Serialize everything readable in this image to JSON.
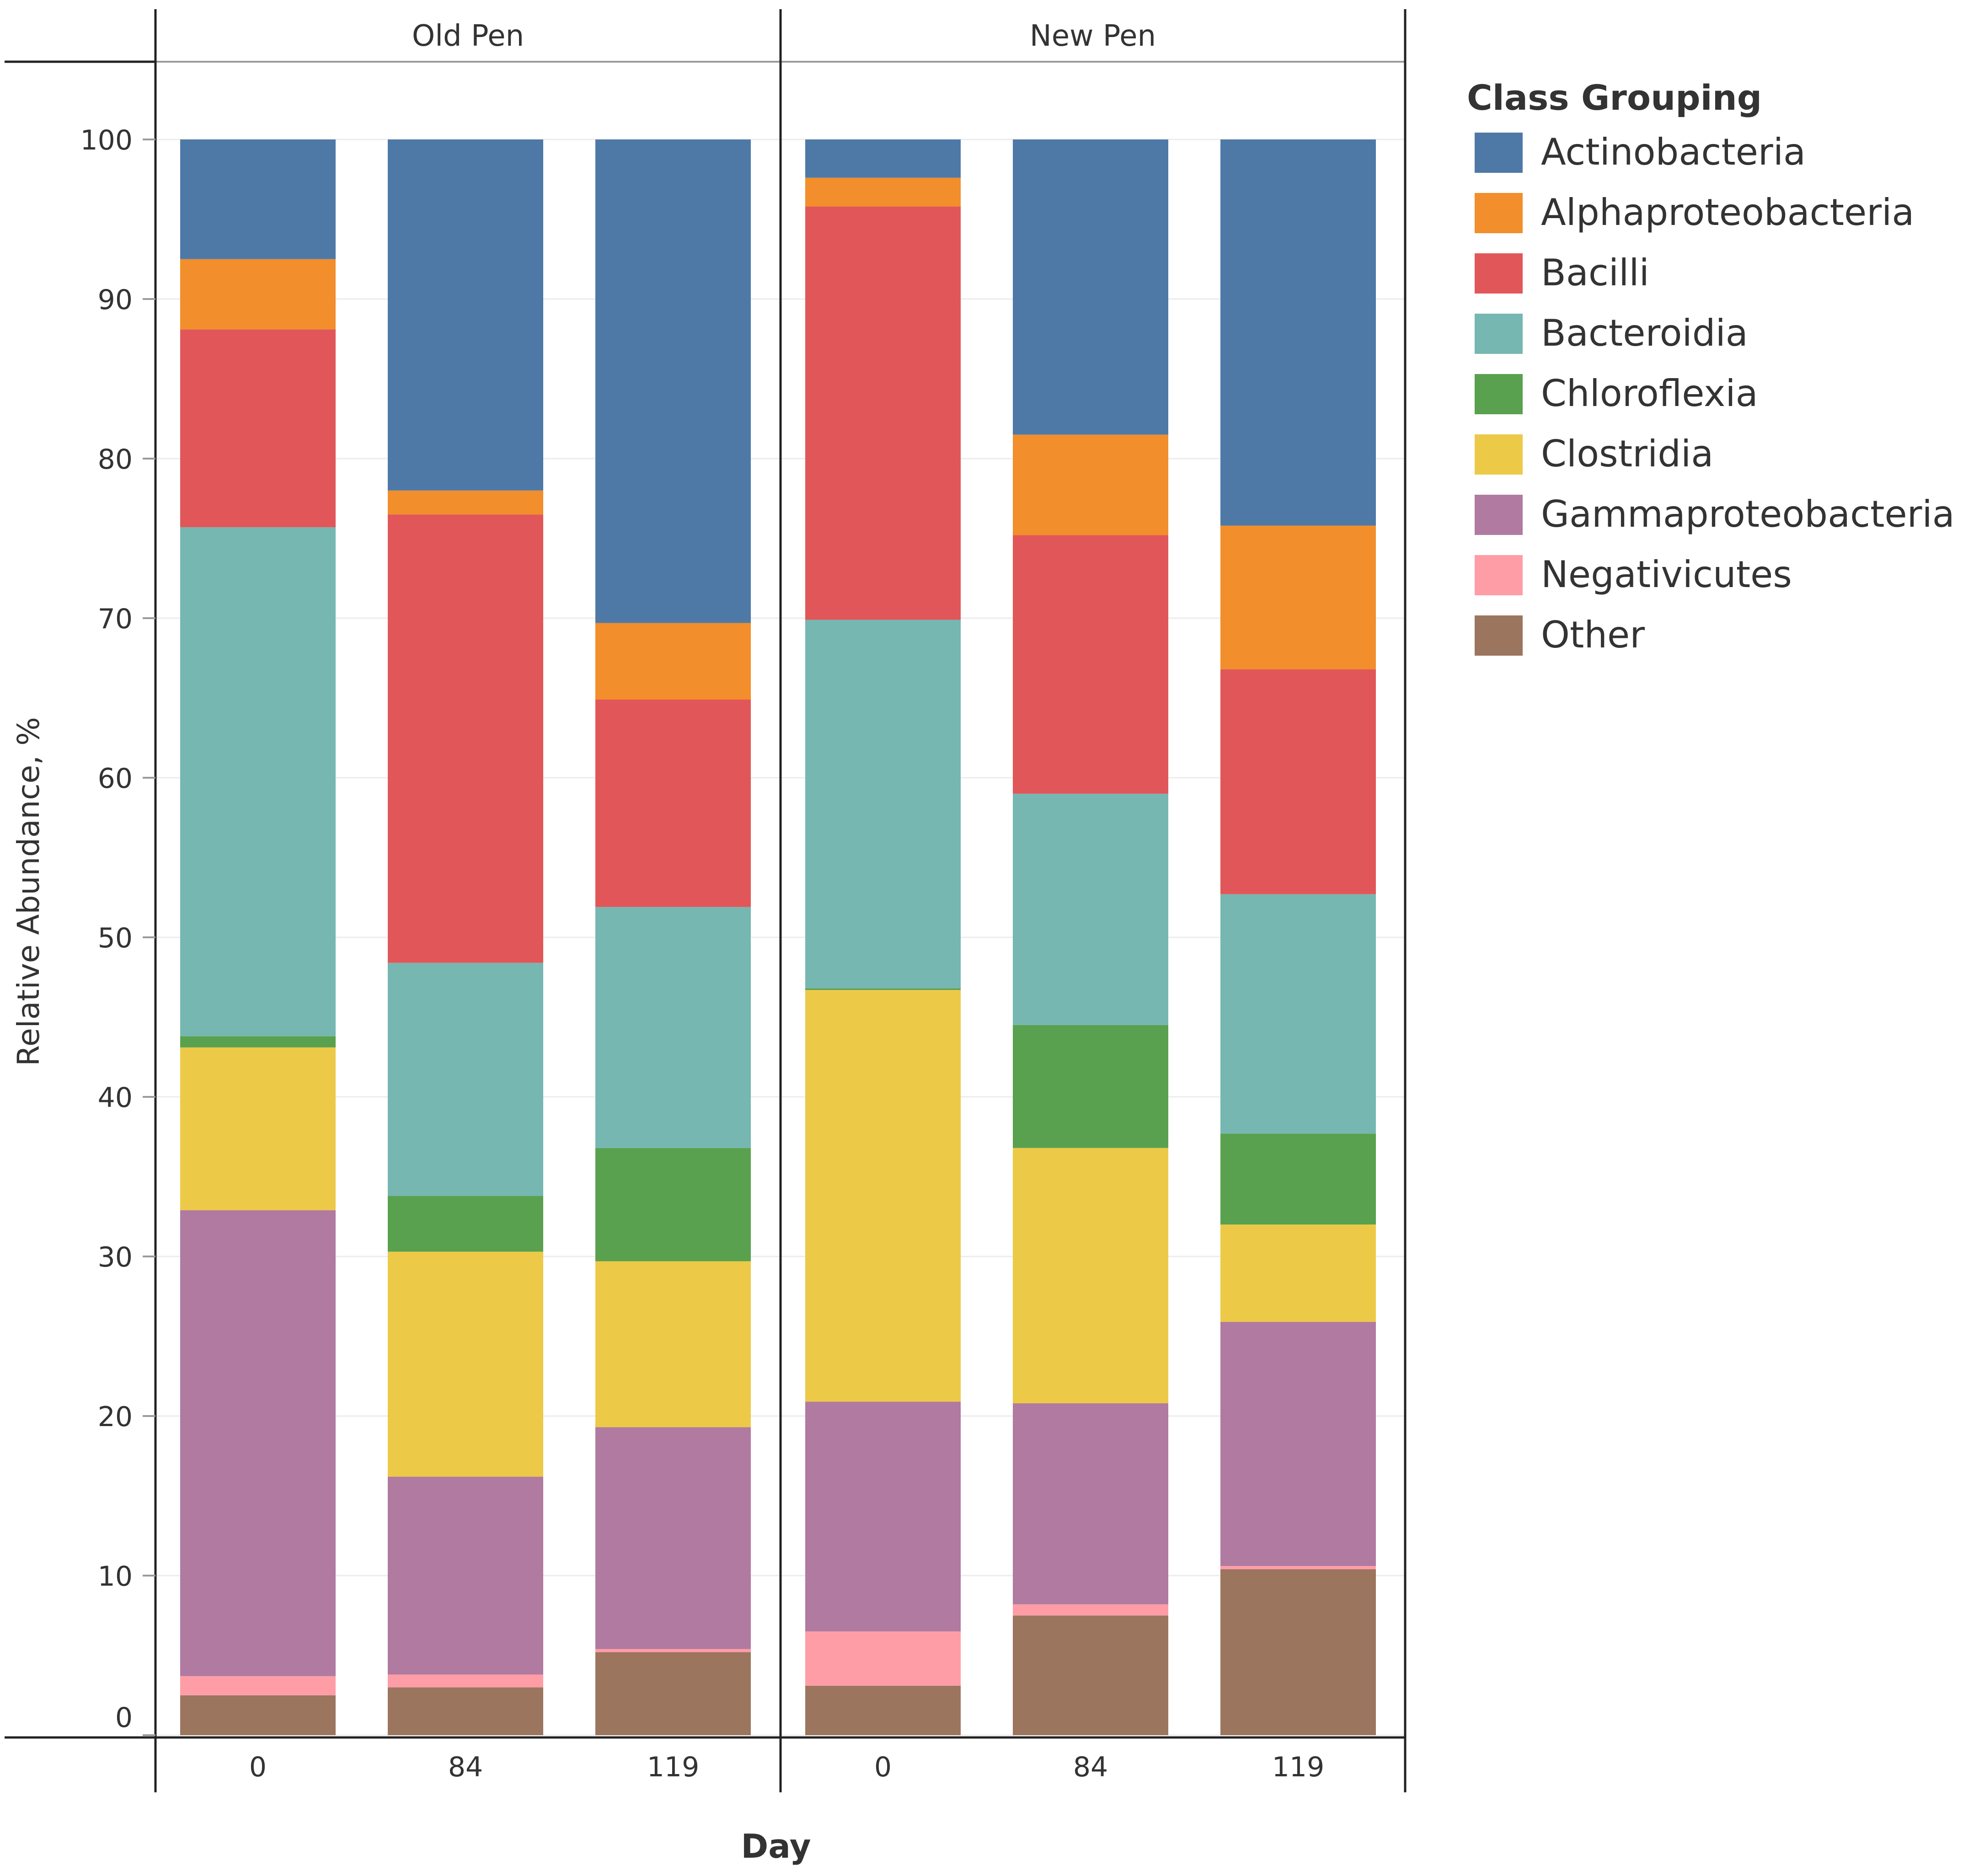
{
  "chart_data": {
    "type": "bar",
    "stacked": true,
    "xlabel": "Day",
    "ylabel": "Relative Abundance, %",
    "ylim": [
      0,
      100
    ],
    "yticks": [
      0,
      10,
      20,
      30,
      40,
      50,
      60,
      70,
      80,
      90,
      100
    ],
    "grid": true,
    "legend_title": "Class Grouping",
    "legend_position": "right",
    "categories": [
      "0",
      "84",
      "119"
    ],
    "series": [
      {
        "name": "Actinobacteria",
        "color": "#4e79a7"
      },
      {
        "name": "Alphaproteobacteria",
        "color": "#f28e2b"
      },
      {
        "name": "Bacilli",
        "color": "#e15759"
      },
      {
        "name": "Bacteroidia",
        "color": "#76b7b2"
      },
      {
        "name": "Chloroflexia",
        "color": "#59a14f"
      },
      {
        "name": "Clostridia",
        "color": "#edc948"
      },
      {
        "name": "Gammaproteobacteria",
        "color": "#b07aa1"
      },
      {
        "name": "Negativicutes",
        "color": "#ff9da7"
      },
      {
        "name": "Other",
        "color": "#9c755f"
      }
    ],
    "stack_order_bottom_to_top": [
      "Other",
      "Negativicutes",
      "Gammaproteobacteria",
      "Clostridia",
      "Chloroflexia",
      "Bacteroidia",
      "Bacilli",
      "Alphaproteobacteria",
      "Actinobacteria"
    ],
    "panels": [
      {
        "title": "Old Pen",
        "bars": [
          {
            "day": "0",
            "values": {
              "Other": 2.5,
              "Negativicutes": 1.2,
              "Gammaproteobacteria": 29.2,
              "Clostridia": 10.2,
              "Chloroflexia": 0.7,
              "Bacteroidia": 31.9,
              "Bacilli": 12.4,
              "Alphaproteobacteria": 4.4,
              "Actinobacteria": 7.5
            }
          },
          {
            "day": "84",
            "values": {
              "Other": 3.0,
              "Negativicutes": 0.8,
              "Gammaproteobacteria": 12.4,
              "Clostridia": 14.1,
              "Chloroflexia": 3.5,
              "Bacteroidia": 14.6,
              "Bacilli": 28.1,
              "Alphaproteobacteria": 1.5,
              "Actinobacteria": 22.0
            }
          },
          {
            "day": "119",
            "values": {
              "Other": 5.2,
              "Negativicutes": 0.2,
              "Gammaproteobacteria": 13.9,
              "Clostridia": 10.4,
              "Chloroflexia": 7.1,
              "Bacteroidia": 15.1,
              "Bacilli": 13.0,
              "Alphaproteobacteria": 4.8,
              "Actinobacteria": 30.3
            }
          }
        ]
      },
      {
        "title": "New Pen",
        "bars": [
          {
            "day": "0",
            "values": {
              "Other": 3.1,
              "Negativicutes": 3.4,
              "Gammaproteobacteria": 14.4,
              "Clostridia": 25.8,
              "Chloroflexia": 0.1,
              "Bacteroidia": 23.1,
              "Bacilli": 25.9,
              "Alphaproteobacteria": 1.8,
              "Actinobacteria": 2.4
            }
          },
          {
            "day": "84",
            "values": {
              "Other": 7.5,
              "Negativicutes": 0.7,
              "Gammaproteobacteria": 12.6,
              "Clostridia": 16.0,
              "Chloroflexia": 7.7,
              "Bacteroidia": 14.5,
              "Bacilli": 16.2,
              "Alphaproteobacteria": 6.3,
              "Actinobacteria": 18.5
            }
          },
          {
            "day": "119",
            "values": {
              "Other": 10.4,
              "Negativicutes": 0.2,
              "Gammaproteobacteria": 15.3,
              "Clostridia": 6.1,
              "Chloroflexia": 5.7,
              "Bacteroidia": 15.0,
              "Bacilli": 14.1,
              "Alphaproteobacteria": 9.0,
              "Actinobacteria": 24.2
            }
          }
        ]
      }
    ]
  }
}
